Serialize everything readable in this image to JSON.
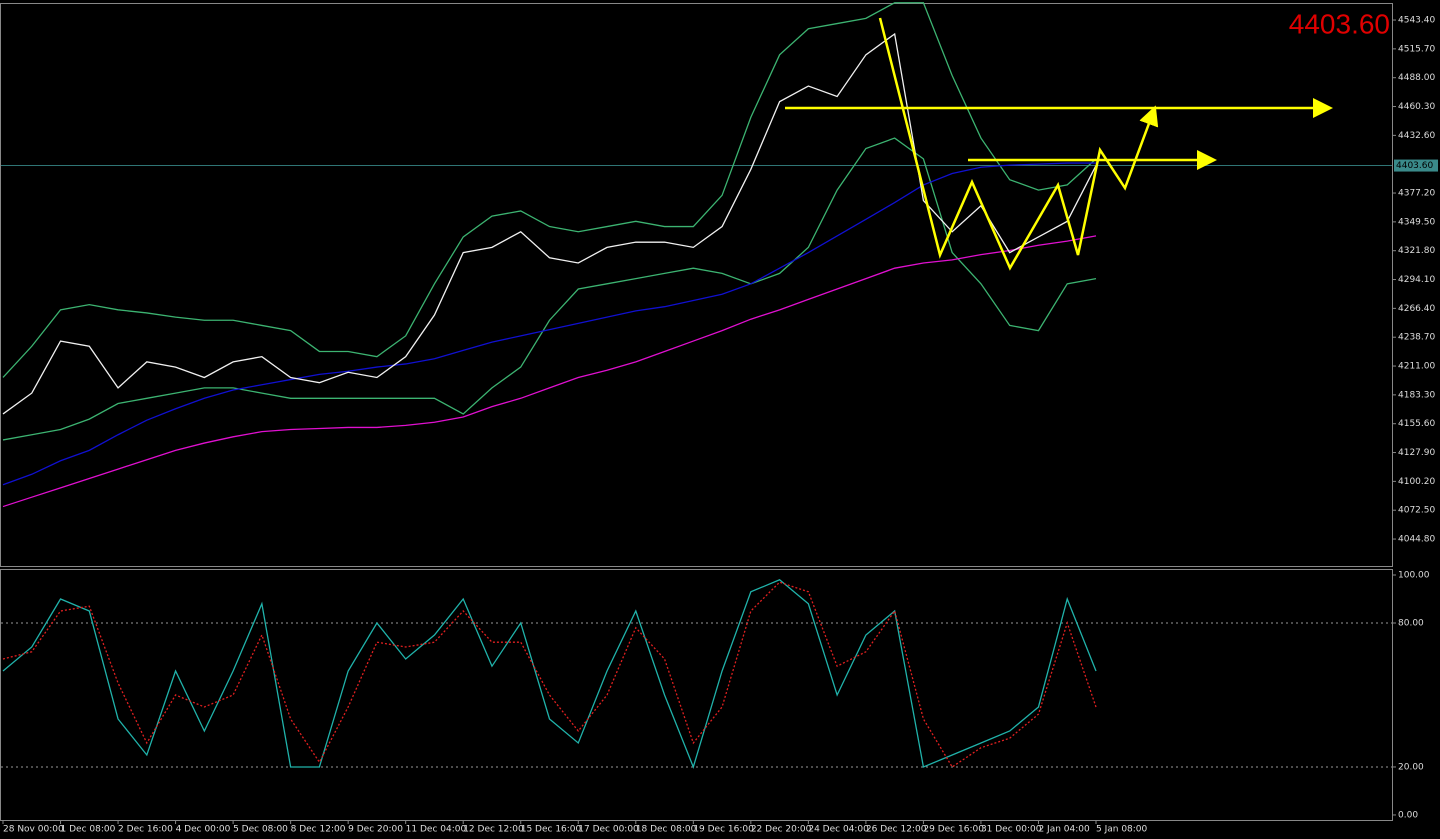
{
  "chart_data": [
    {
      "type": "line",
      "last_price": {
        "value": 4403.6,
        "label": "4403.60"
      },
      "ylim": [
        4018.9,
        4558.8
      ],
      "yticks": [
        {
          "value": 4543.4,
          "label": "4543.40"
        },
        {
          "value": 4515.7,
          "label": "4515.70"
        },
        {
          "value": 4488,
          "label": "4488.00"
        },
        {
          "value": 4460.3,
          "label": "4460.30"
        },
        {
          "value": 4432.6,
          "label": "4432.60"
        },
        {
          "value": 4377.2,
          "label": "4377.20"
        },
        {
          "value": 4349.5,
          "label": "4349.50"
        },
        {
          "value": 4321.8,
          "label": "4321.80"
        },
        {
          "value": 4294.1,
          "label": "4294.10"
        },
        {
          "value": 4266.4,
          "label": "4266.40"
        },
        {
          "value": 4238.7,
          "label": "4238.70"
        },
        {
          "value": 4211,
          "label": "4211.00"
        },
        {
          "value": 4183.3,
          "label": "4183.30"
        },
        {
          "value": 4155.6,
          "label": "4155.60"
        },
        {
          "value": 4127.9,
          "label": "4127.90"
        },
        {
          "value": 4100.2,
          "label": "4100.20"
        },
        {
          "value": 4072.5,
          "label": "4072.50"
        },
        {
          "value": 4044.8,
          "label": "4044.80"
        }
      ],
      "series": [
        {
          "color": "#3cb371",
          "values": [
            4200,
            4230,
            4265,
            4270,
            4265,
            4262,
            4258,
            4255,
            4255,
            4250,
            4245,
            4225,
            4225,
            4220,
            4240,
            4290,
            4335,
            4355,
            4360,
            4345,
            4340,
            4345,
            4350,
            4345,
            4345,
            4375,
            4450,
            4510,
            4535,
            4540,
            4545,
            4560,
            4560,
            4490,
            4430,
            4390,
            4380,
            4385,
            4410
          ]
        },
        {
          "color": "#3cb371",
          "values": [
            4140,
            4145,
            4150,
            4160,
            4175,
            4180,
            4185,
            4190,
            4190,
            4185,
            4180,
            4180,
            4180,
            4180,
            4180,
            4180,
            4165,
            4190,
            4210,
            4255,
            4285,
            4290,
            4295,
            4300,
            4305,
            4300,
            4290,
            4300,
            4325,
            4380,
            4420,
            4430,
            4410,
            4320,
            4290,
            4250,
            4245,
            4290,
            4295
          ]
        },
        {
          "color": "#1010d0",
          "values": [
            4097,
            4107,
            4120,
            4130,
            4145,
            4159,
            4170,
            4180,
            4188,
            4193,
            4198,
            4203,
            4206,
            4210,
            4213,
            4218,
            4226,
            4234,
            4240,
            4246,
            4252,
            4258,
            4264,
            4268,
            4274,
            4280,
            4290,
            4305,
            4320,
            4336,
            4352,
            4368,
            4385,
            4396,
            4402,
            4404,
            4405,
            4406,
            4406
          ]
        },
        {
          "color": "#e010d0",
          "values": [
            4076,
            4085,
            4094,
            4103,
            4112,
            4121,
            4130,
            4137,
            4143,
            4148,
            4150,
            4151,
            4152,
            4152,
            4154,
            4157,
            4162,
            4172,
            4180,
            4190,
            4200,
            4207,
            4215,
            4225,
            4235,
            4245,
            4256,
            4265,
            4275,
            4285,
            4295,
            4305,
            4310,
            4313,
            4318,
            4322,
            4327,
            4331,
            4336
          ]
        },
        {
          "color": "#f0f0f0",
          "values": [
            4165,
            4185,
            4235,
            4230,
            4190,
            4215,
            4210,
            4200,
            4215,
            4220,
            4200,
            4195,
            4205,
            4200,
            4220,
            4260,
            4320,
            4325,
            4340,
            4315,
            4310,
            4325,
            4330,
            4330,
            4325,
            4345,
            4400,
            4465,
            4480,
            4470,
            4510,
            4530,
            4370,
            4340,
            4365,
            4320,
            4335,
            4350,
            4403.6
          ]
        }
      ]
    },
    {
      "type": "line",
      "ylim": [
        -2.1,
        102.5
      ],
      "yticks": [
        {
          "value": 100,
          "label": "100.00"
        },
        {
          "value": 80,
          "label": "80.00"
        },
        {
          "value": 20,
          "label": "20.00"
        },
        {
          "value": 0,
          "label": "0.00"
        }
      ],
      "levels": [
        80,
        20
      ],
      "categories": [
        "28 Nov 00:00",
        null,
        "1 Dec 08:00",
        null,
        "2 Dec 16:00",
        null,
        "4 Dec 00:00",
        null,
        "5 Dec 08:00",
        null,
        "8 Dec 12:00",
        null,
        "9 Dec 20:00",
        null,
        "11 Dec 04:00",
        null,
        "12 Dec 12:00",
        null,
        "15 Dec 16:00",
        null,
        "17 Dec 00:00",
        null,
        "18 Dec 08:00",
        null,
        "19 Dec 16:00",
        null,
        "22 Dec 20:00",
        null,
        "24 Dec 04:00",
        null,
        "26 Dec 12:00",
        null,
        "29 Dec 16:00",
        null,
        "31 Dec 00:00",
        null,
        "2 Jan 04:00",
        null,
        "5 Jan 08:00"
      ],
      "series": [
        {
          "color": "#20b2aa",
          "values": [
            60,
            70,
            90,
            85,
            40,
            25,
            60,
            35,
            60,
            88,
            20,
            20,
            60,
            80,
            65,
            75,
            90,
            62,
            80,
            40,
            30,
            60,
            85,
            50,
            20,
            60,
            93,
            98,
            88,
            50,
            75,
            85,
            20,
            25,
            30,
            35,
            45,
            90,
            60
          ]
        },
        {
          "color": "#e02020",
          "dash": true,
          "values": [
            65,
            68,
            85,
            87,
            55,
            30,
            50,
            45,
            50,
            75,
            40,
            22,
            45,
            72,
            70,
            72,
            85,
            72,
            72,
            50,
            35,
            50,
            78,
            65,
            30,
            45,
            85,
            97,
            93,
            62,
            68,
            85,
            40,
            20,
            28,
            32,
            42,
            80,
            45
          ]
        }
      ]
    }
  ]
}
